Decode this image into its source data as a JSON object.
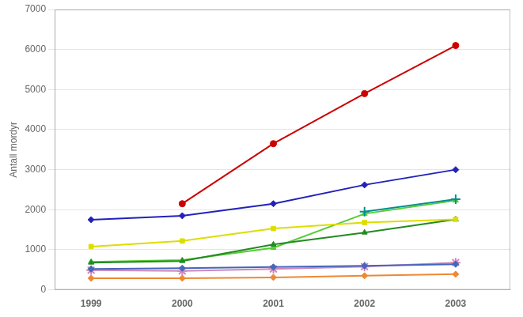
{
  "chart_data": {
    "type": "line",
    "x": [
      1999,
      2000,
      2001,
      2002,
      2003
    ],
    "series": [
      {
        "color": "#cc0000",
        "marker": "circle",
        "values": [
          null,
          2150,
          3650,
          4900,
          6100
        ]
      },
      {
        "color": "#2222bb",
        "marker": "diamond",
        "values": [
          1750,
          1850,
          2150,
          2620,
          3000
        ]
      },
      {
        "color": "#009090",
        "marker": "plus",
        "values": [
          null,
          null,
          null,
          1950,
          2260
        ]
      },
      {
        "color": "#dddd00",
        "marker": "square",
        "values": [
          1080,
          1220,
          1530,
          1680,
          1760
        ]
      },
      {
        "color": "#228B22",
        "marker": "triangle",
        "values": [
          680,
          720,
          1130,
          1430,
          1760
        ]
      },
      {
        "color": "#55cc33",
        "marker": "triangle",
        "values": [
          700,
          740,
          1050,
          1900,
          2230
        ]
      },
      {
        "color": "#4466bb",
        "marker": "diamond",
        "values": [
          520,
          540,
          570,
          600,
          640
        ]
      },
      {
        "color": "#cc88bb",
        "marker": "star",
        "values": [
          490,
          470,
          520,
          580,
          680
        ]
      },
      {
        "color": "#ee8833",
        "marker": "diamond",
        "values": [
          290,
          290,
          310,
          350,
          390
        ]
      }
    ],
    "ylabel": "Antall mordyr",
    "xlim": [
      1998.6,
      2003.6
    ],
    "xticks": [
      1999,
      2000,
      2001,
      2002,
      2003
    ],
    "ylim": [
      0,
      7000
    ],
    "yticks": [
      0,
      1000,
      2000,
      3000,
      4000,
      5000,
      6000,
      7000
    ],
    "grid": "y"
  }
}
